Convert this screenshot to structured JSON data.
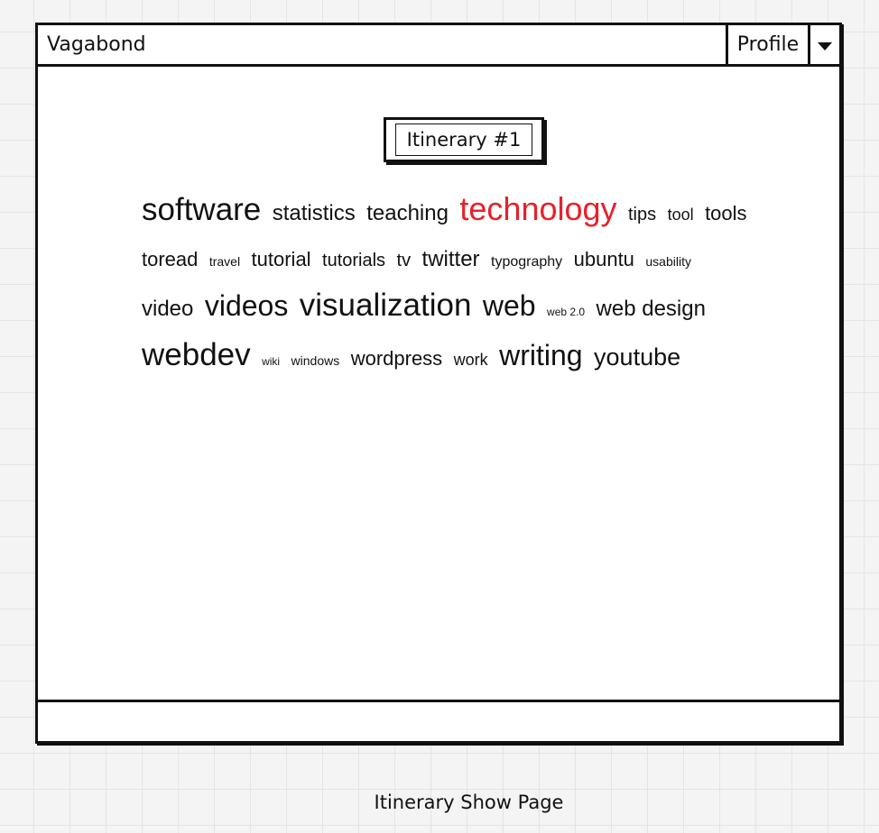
{
  "app": {
    "title": "Vagabond"
  },
  "header": {
    "profile_label": "Profile"
  },
  "itinerary": {
    "title": "Itinerary #1"
  },
  "tag_cloud": [
    {
      "text": "software",
      "size": "s10",
      "color": "#111111"
    },
    {
      "text": "statistics",
      "size": "s7",
      "color": "#111111"
    },
    {
      "text": "teaching",
      "size": "s7",
      "color": "#111111"
    },
    {
      "text": "technology",
      "size": "s11",
      "color": "#e8202a"
    },
    {
      "text": "tips",
      "size": "s5",
      "color": "#111111"
    },
    {
      "text": "tool",
      "size": "s4",
      "color": "#111111"
    },
    {
      "text": "tools",
      "size": "s6",
      "color": "#111111"
    },
    {
      "text": "toread",
      "size": "s6",
      "color": "#111111"
    },
    {
      "text": "travel",
      "size": "s2",
      "color": "#111111"
    },
    {
      "text": "tutorial",
      "size": "s6",
      "color": "#111111"
    },
    {
      "text": "tutorials",
      "size": "s5",
      "color": "#111111"
    },
    {
      "text": "tv",
      "size": "s5",
      "color": "#111111"
    },
    {
      "text": "twitter",
      "size": "s7",
      "color": "#111111"
    },
    {
      "text": "typography",
      "size": "s3",
      "color": "#111111"
    },
    {
      "text": "ubuntu",
      "size": "s6",
      "color": "#111111"
    },
    {
      "text": "usability",
      "size": "s2",
      "color": "#111111"
    },
    {
      "text": "video",
      "size": "s7",
      "color": "#111111"
    },
    {
      "text": "videos",
      "size": "s9",
      "color": "#111111"
    },
    {
      "text": "visualization",
      "size": "s10",
      "color": "#111111"
    },
    {
      "text": "web",
      "size": "s9",
      "color": "#111111"
    },
    {
      "text": "web 2.0",
      "size": "s1",
      "color": "#111111"
    },
    {
      "text": "web design",
      "size": "s7",
      "color": "#111111"
    },
    {
      "text": "webdev",
      "size": "s10",
      "color": "#111111"
    },
    {
      "text": "wiki",
      "size": "s1",
      "color": "#111111"
    },
    {
      "text": "windows",
      "size": "s2",
      "color": "#111111"
    },
    {
      "text": "wordpress",
      "size": "s6",
      "color": "#111111"
    },
    {
      "text": "work",
      "size": "s4",
      "color": "#111111"
    },
    {
      "text": "writing",
      "size": "s9",
      "color": "#111111"
    },
    {
      "text": "youtube",
      "size": "s8",
      "color": "#111111"
    }
  ],
  "caption": "Itinerary Show Page"
}
